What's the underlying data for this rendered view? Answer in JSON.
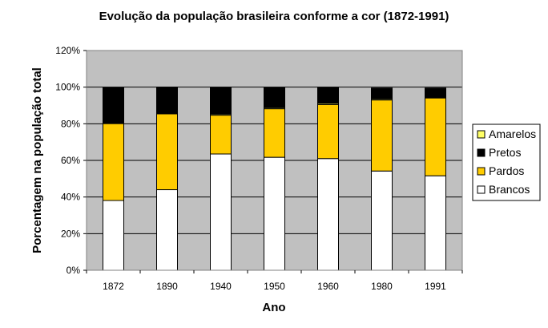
{
  "chart_data": {
    "type": "bar",
    "stacked": true,
    "title": "Evolução da população brasileira conforme a cor (1872-1991)",
    "xlabel": "Ano",
    "ylabel": "Porcentagem na população total",
    "categories": [
      "1872",
      "1890",
      "1940",
      "1950",
      "1960",
      "1980",
      "1991"
    ],
    "ylim": [
      0,
      120
    ],
    "yticks": [
      0,
      20,
      40,
      60,
      80,
      100,
      120
    ],
    "ytick_labels": [
      "0%",
      "20%",
      "40%",
      "60%",
      "80%",
      "100%",
      "120%"
    ],
    "grid": true,
    "legend_position": "right",
    "plot_background": "#c0c0c0",
    "series": [
      {
        "name": "Brancos",
        "color": "#ffffff",
        "values": [
          38.1,
          44.0,
          63.5,
          61.7,
          61.0,
          54.2,
          51.6
        ]
      },
      {
        "name": "Pardos",
        "color": "#ffcc00",
        "values": [
          42.0,
          41.4,
          21.2,
          26.5,
          29.5,
          38.8,
          42.5
        ]
      },
      {
        "name": "Amarelos",
        "color": "#ffff66",
        "values": [
          0.0,
          0.0,
          0.6,
          0.6,
          0.7,
          0.6,
          0.4
        ]
      },
      {
        "name": "Pretos",
        "color": "#000000",
        "values": [
          19.7,
          14.6,
          14.6,
          11.0,
          8.7,
          5.9,
          5.0
        ]
      }
    ],
    "legend_order": [
      "Amarelos",
      "Pretos",
      "Pardos",
      "Brancos"
    ]
  }
}
